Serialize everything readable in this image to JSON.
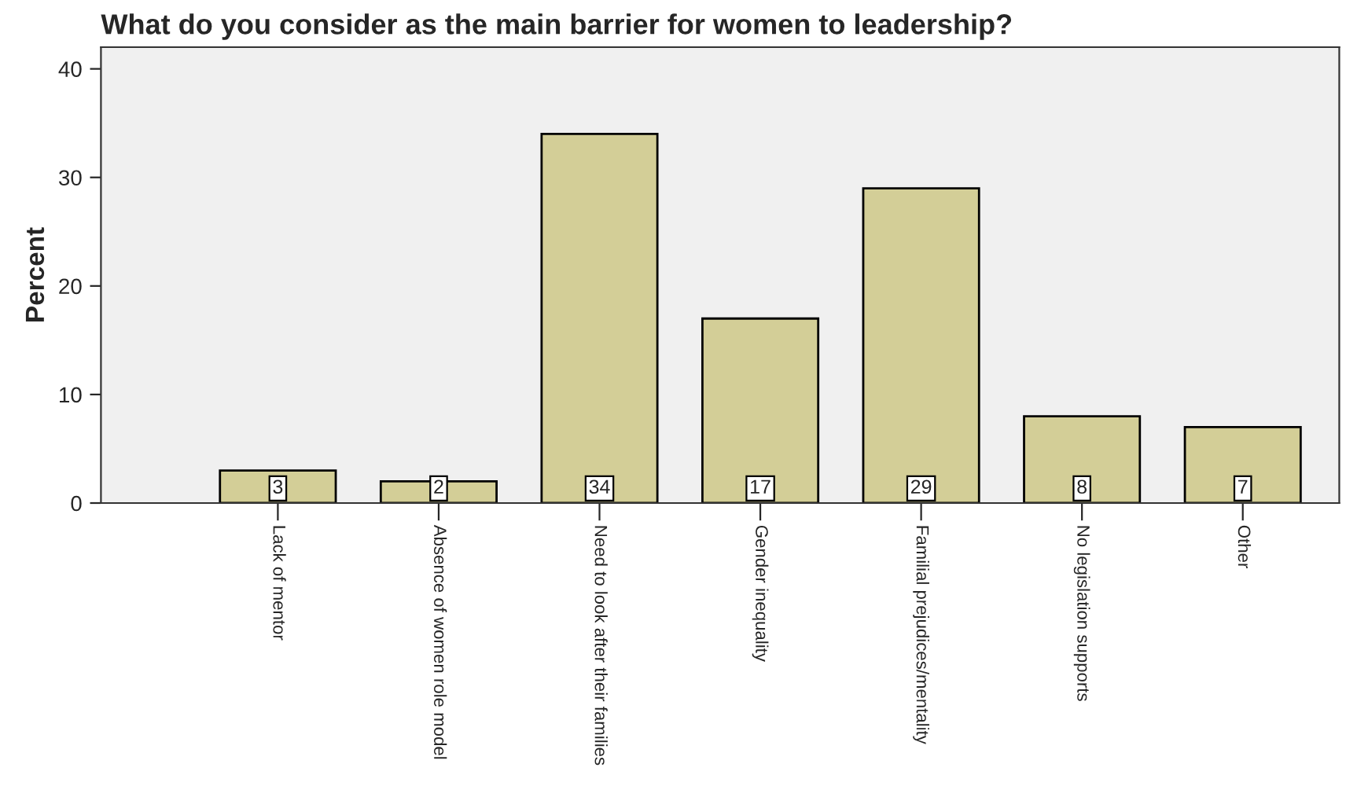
{
  "chart_data": {
    "type": "bar",
    "title": "What do you consider as the main barrier for women to leadership?",
    "ylabel": "Percent",
    "categories": [
      "Lack of mentor",
      "Absence of women role model",
      "Need to look after their families",
      "Gender inequality",
      "Familial prejudices/mentality",
      "No legislation supports",
      "Other"
    ],
    "values": [
      3,
      2,
      34,
      17,
      29,
      8,
      7
    ],
    "color": "#d3ce97",
    "ylim": [
      0,
      42
    ],
    "yticks": [
      0,
      10,
      20,
      30,
      40
    ],
    "data_labels": true,
    "grid": false
  }
}
